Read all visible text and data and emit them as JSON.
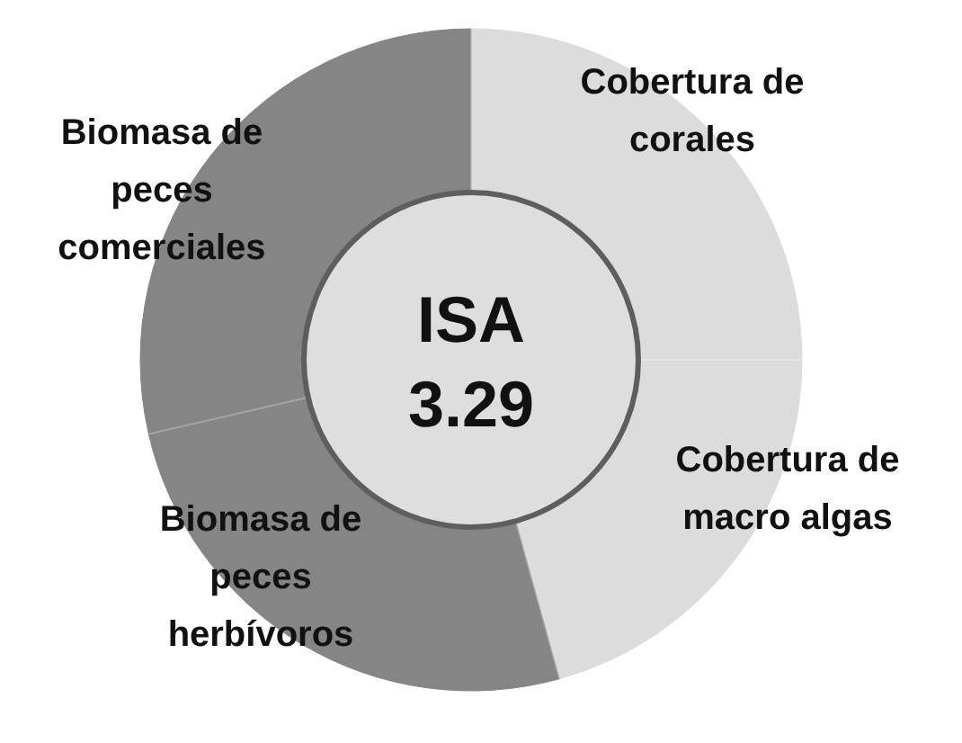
{
  "chart_data": {
    "type": "donut",
    "title": "ISA",
    "subtitle": "3.29",
    "categories": [
      "Cobertura de corales",
      "Cobertura de macro algas",
      "Biomasa de peces herbívoros",
      "Biomasa de peces comerciales"
    ],
    "values": [
      25,
      20.7,
      25.7,
      28.6
    ],
    "colors": [
      "#dcdcdc",
      "#dcdcdc",
      "#858585",
      "#858585"
    ]
  }
}
